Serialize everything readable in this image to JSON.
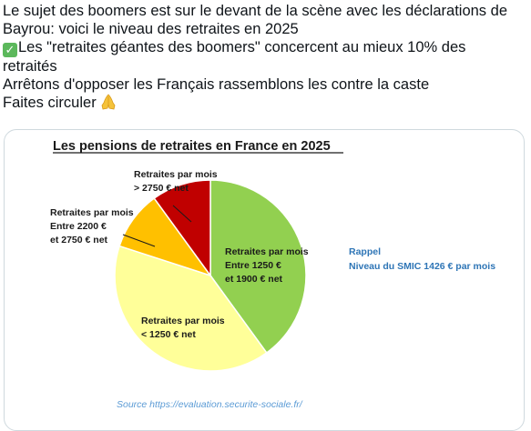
{
  "post": {
    "line1": "Le sujet des boomers est sur le devant de la scène avec les déclarations de",
    "line2": "Bayrou: voici le niveau des retraites en 2025",
    "line3": "Les \"retraites géantes des boomers\" concercent au mieux 10% des",
    "line4": "retraités",
    "line5": "Arrêtons d'opposer les Français rassemblons les contre la caste",
    "line6": "Faites circuler",
    "check_icon": "white-check-mark-emoji",
    "pray_icon": "folded-hands-emoji"
  },
  "chart_data": {
    "type": "pie",
    "title": "Les pensions de retraites en France en 2025",
    "slices": [
      {
        "label_lines": [
          "Retraites par mois",
          "Entre 1250 €",
          "et 1900 € net"
        ],
        "value": 40,
        "color": "#92d050"
      },
      {
        "label_lines": [
          "Retraites par mois",
          "< 1250 € net"
        ],
        "value": 40,
        "color": "#ffff99"
      },
      {
        "label_lines": [
          "Retraites par mois",
          "Entre 2200 €",
          "et 2750 € net"
        ],
        "value": 10,
        "color": "#ffc000"
      },
      {
        "label_lines": [
          "Retraites par mois",
          "> 2750 € net"
        ],
        "value": 10,
        "color": "#c00000"
      }
    ],
    "note": {
      "title": "Rappel",
      "text": "Niveau du SMIC 1426 € par mois",
      "color": "#2e75b6"
    },
    "source": "Source https://evaluation.securite-sociale.fr/",
    "source_color": "#5b9bd5"
  }
}
